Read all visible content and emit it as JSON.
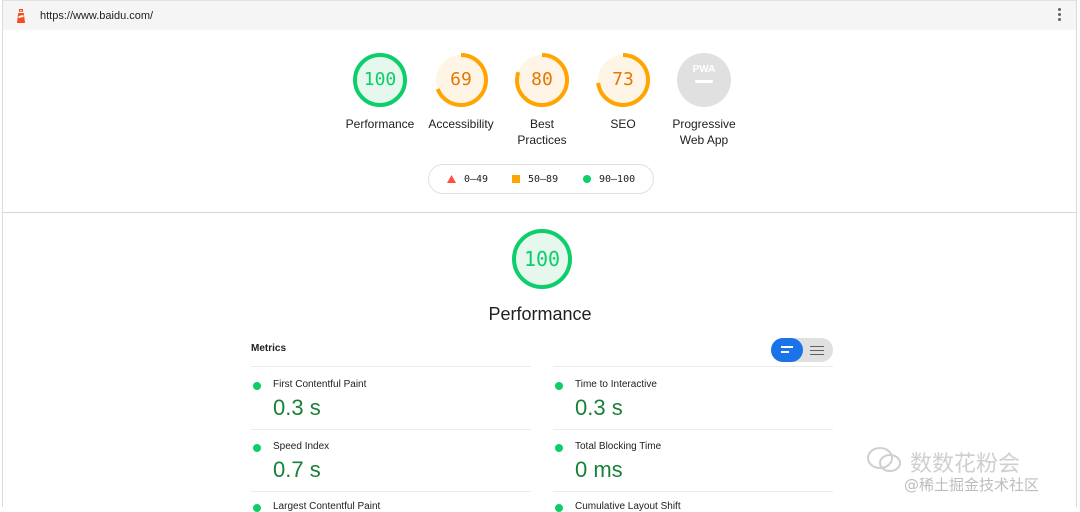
{
  "browser": {
    "url": "https://www.baidu.com/",
    "menu_icon": "kebab-menu-icon",
    "app_icon": "lighthouse-icon"
  },
  "summary_gauges": [
    {
      "score": "100",
      "label": "Performance",
      "status": "pass",
      "fraction": 1.0
    },
    {
      "score": "69",
      "label": "Accessibility",
      "status": "average",
      "fraction": 0.69
    },
    {
      "score": "80",
      "label": "Best Practices",
      "status": "average",
      "fraction": 0.8
    },
    {
      "score": "73",
      "label": "SEO",
      "status": "average",
      "fraction": 0.73
    },
    {
      "score": "",
      "label": "Progressive Web App",
      "badge": "PWA",
      "status": "na"
    }
  ],
  "legend": {
    "fail": "0–49",
    "average": "50–89",
    "pass": "90–100"
  },
  "colors": {
    "pass": "#0cce6b",
    "average": "#ffa400",
    "fail": "#ff4e42",
    "accent": "#1a73e8",
    "metric_value": "#188038"
  },
  "performance": {
    "score": "100",
    "title": "Performance",
    "metrics_heading": "Metrics",
    "metrics": [
      {
        "name": "First Contentful Paint",
        "value": "0.3 s"
      },
      {
        "name": "Time to Interactive",
        "value": "0.3 s"
      },
      {
        "name": "Speed Index",
        "value": "0.7 s"
      },
      {
        "name": "Total Blocking Time",
        "value": "0 ms"
      },
      {
        "name": "Largest Contentful Paint",
        "value": ""
      },
      {
        "name": "Cumulative Layout Shift",
        "value": ""
      }
    ]
  },
  "watermark": {
    "line1": "数数花粉会",
    "line2": "@稀土掘金技术社区"
  }
}
